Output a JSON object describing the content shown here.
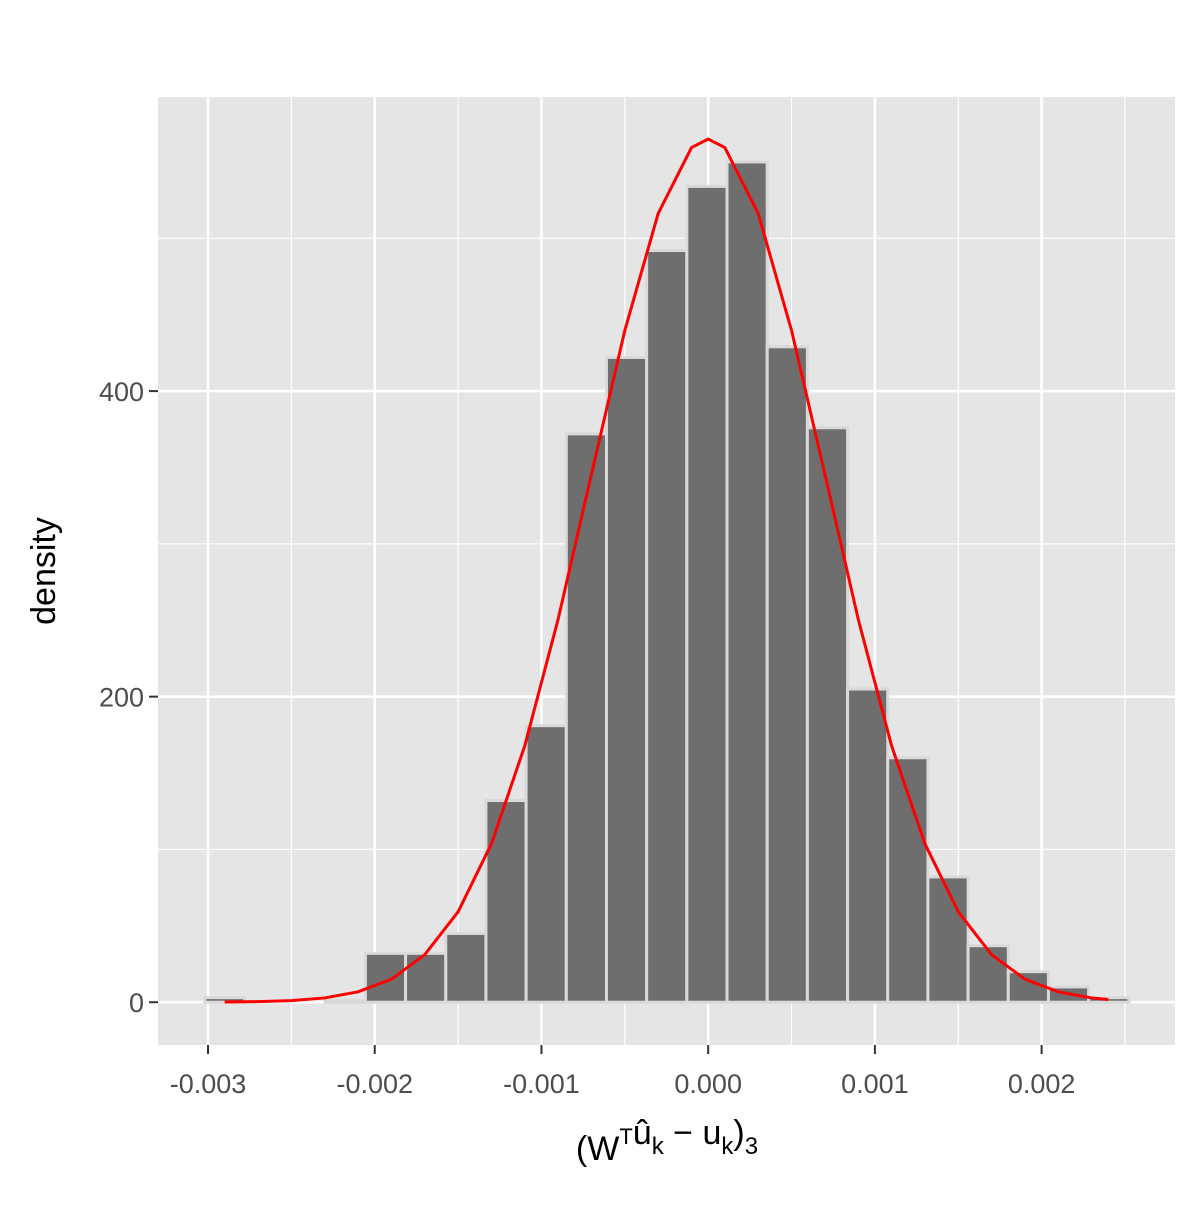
{
  "chart_data": {
    "type": "histogram",
    "x_label_parts": [
      "(W",
      "T",
      "û",
      "k",
      " − u",
      "k",
      ")",
      "3"
    ],
    "y_label": "density",
    "bins": [
      -0.00302,
      -0.002779,
      -0.002538,
      -0.002297,
      -0.002056,
      -0.001815,
      -0.001574,
      -0.001333,
      -0.001092,
      -0.000851,
      -0.00061,
      -0.000369,
      -0.000128,
      0.000113,
      0.000354,
      0.000595,
      0.000836,
      0.001077,
      0.001318,
      0.001559,
      0.0018,
      0.002041,
      0.002282,
      0.002523
    ],
    "values": [
      3,
      0,
      0,
      1,
      32,
      32,
      45,
      132,
      181,
      372,
      422,
      492,
      534,
      550,
      429,
      376,
      205,
      160,
      82,
      37,
      20,
      10,
      3
    ],
    "color": "#6e6e6e",
    "edge_color": "#d9d9d9",
    "curve": {
      "color": "#ff0000",
      "x": [
        -0.0029,
        -0.0027,
        -0.0025,
        -0.0023,
        -0.0021,
        -0.0019,
        -0.0017,
        -0.0015,
        -0.0013,
        -0.0011,
        -0.0009,
        -0.0007,
        -0.0005,
        -0.0003,
        -0.0001,
        0,
        0.0001,
        0.0003,
        0.0005,
        0.0007,
        0.0009,
        0.0011,
        0.0013,
        0.0015,
        0.0017,
        0.0019,
        0.0021,
        0.0023,
        0.0024
      ],
      "values": [
        0.12,
        0.38,
        1.07,
        2.8,
        6.8,
        15.1,
        31.1,
        59.2,
        103.7,
        167.9,
        250.7,
        345.6,
        439.7,
        516.2,
        559.4,
        565,
        559.4,
        516.2,
        439.7,
        345.6,
        250.7,
        167.9,
        103.7,
        59.2,
        31.1,
        15.1,
        6.8,
        2.8,
        1.75
      ]
    },
    "xlim": [
      -0.0033,
      0.0028
    ],
    "ylim": [
      -28,
      592.5
    ],
    "xticks": [
      -0.003,
      -0.002,
      -0.001,
      {
        "value": 0,
        "label": "0.000"
      },
      0.001,
      0.002
    ],
    "yticks": [
      0,
      200,
      400
    ],
    "x_minor_grid": [
      -0.0025,
      -0.0015,
      -0.0005,
      0.0005,
      0.0015,
      0.0025
    ],
    "y_minor_grid": [
      100,
      300,
      500
    ],
    "grid": true
  }
}
